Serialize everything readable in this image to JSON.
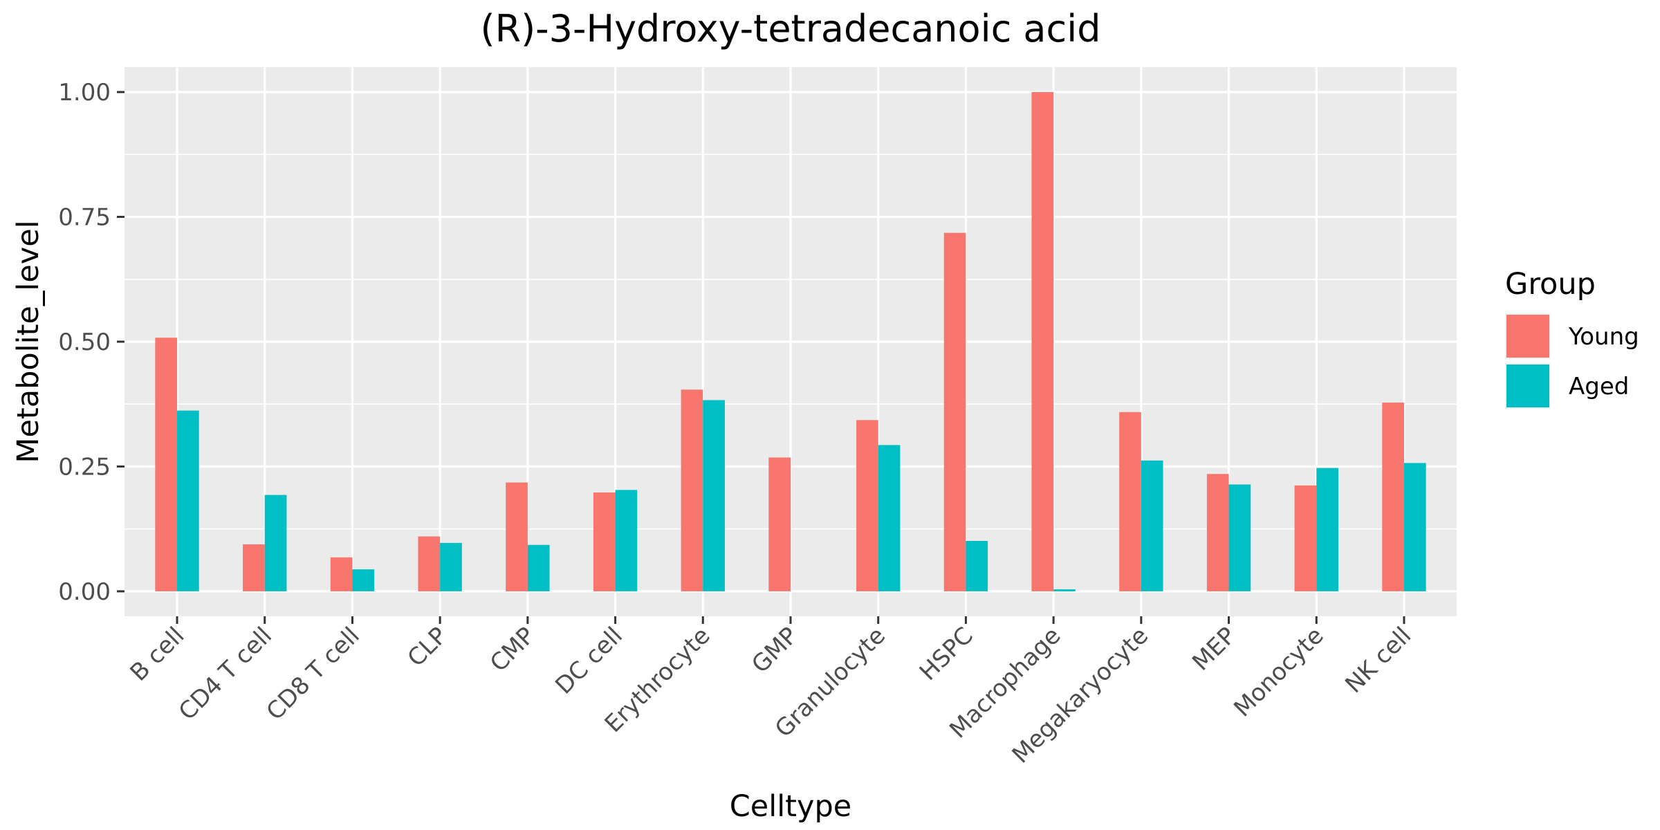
{
  "chart_data": {
    "type": "bar",
    "title": "(R)-3-Hydroxy-tetradecanoic acid",
    "xlabel": "Celltype",
    "ylabel": "Metabolite_level",
    "categories": [
      "B cell",
      "CD4 T cell",
      "CD8 T cell",
      "CLP",
      "CMP",
      "DC cell",
      "Erythrocyte",
      "GMP",
      "Granulocyte",
      "HSPC",
      "Macrophage",
      "Megakaryocyte",
      "MEP",
      "Monocyte",
      "NK cell"
    ],
    "series": [
      {
        "name": "Young",
        "color": "#F8766D",
        "values": [
          0.508,
          0.094,
          0.068,
          0.11,
          0.218,
          0.198,
          0.404,
          0.268,
          0.343,
          0.718,
          1.0,
          0.359,
          0.235,
          0.212,
          0.378
        ]
      },
      {
        "name": "Aged",
        "color": "#00BFC4",
        "values": [
          0.362,
          0.193,
          0.044,
          0.097,
          0.093,
          0.203,
          0.383,
          0.0,
          0.293,
          0.101,
          0.004,
          0.262,
          0.214,
          0.247,
          0.257
        ]
      }
    ],
    "ylim": [
      -0.05,
      1.05
    ],
    "yticks": [
      0.0,
      0.25,
      0.5,
      0.75,
      1.0
    ],
    "ytick_labels": [
      "0.00",
      "0.25",
      "0.50",
      "0.75",
      "1.00"
    ],
    "grid": true,
    "legend": {
      "title": "Group",
      "position": "right"
    },
    "panel_color": "#EBEBEB",
    "grid_color": "#FFFFFF"
  }
}
